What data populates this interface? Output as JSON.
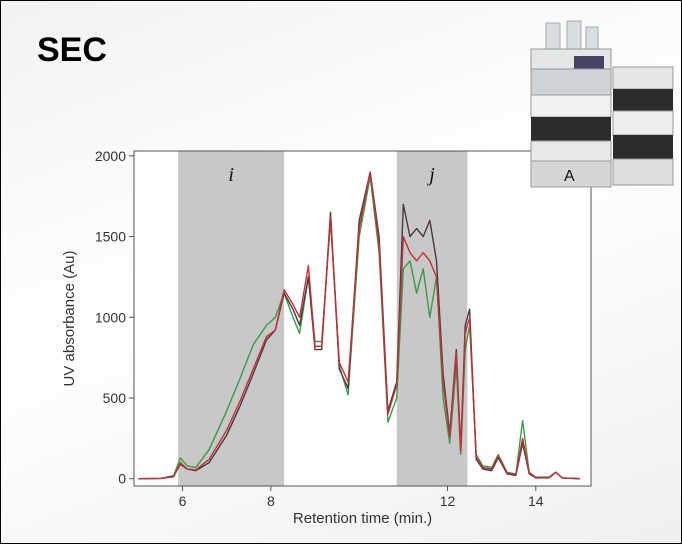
{
  "chart_data": {
    "type": "line",
    "title": "SEC",
    "image_label": "A",
    "x_label": "Retention time (min.)",
    "y_label": "UV absorbance (Au)",
    "xlim": [
      4.9,
      15.25
    ],
    "ylim": [
      -45,
      2030
    ],
    "xticks": [
      6,
      8,
      12,
      14
    ],
    "yticks": [
      0,
      500,
      1000,
      1500,
      2000
    ],
    "regions": [
      {
        "label": "i",
        "xlim": [
          5.9,
          8.3
        ],
        "color": "#c8c8c8"
      },
      {
        "label": "j",
        "xlim": [
          10.85,
          12.45
        ],
        "color": "#c8c8c8"
      }
    ],
    "x": [
      5.0,
      5.5,
      5.8,
      5.95,
      6.1,
      6.3,
      6.6,
      7.0,
      7.3,
      7.6,
      7.9,
      8.1,
      8.3,
      8.5,
      8.65,
      8.85,
      9.0,
      9.15,
      9.35,
      9.55,
      9.75,
      10.0,
      10.25,
      10.45,
      10.65,
      10.85,
      11.0,
      11.15,
      11.3,
      11.45,
      11.6,
      11.75,
      11.9,
      12.05,
      12.2,
      12.3,
      12.4,
      12.5,
      12.65,
      12.8,
      13.0,
      13.15,
      13.35,
      13.55,
      13.7,
      13.85,
      14.0,
      14.3,
      14.45,
      14.6,
      15.0
    ],
    "series": [
      {
        "color": "#3a9a4a",
        "values": [
          0,
          2,
          20,
          130,
          80,
          70,
          180,
          420,
          620,
          830,
          950,
          1000,
          1150,
          1000,
          900,
          1250,
          850,
          850,
          1600,
          700,
          520,
          1500,
          1870,
          1400,
          350,
          500,
          1300,
          1350,
          1150,
          1300,
          1000,
          1250,
          500,
          220,
          700,
          150,
          800,
          950,
          150,
          80,
          70,
          150,
          40,
          30,
          360,
          40,
          10,
          10,
          40,
          5,
          0
        ]
      },
      {
        "color": "#4a3a3a",
        "values": [
          0,
          2,
          15,
          90,
          60,
          50,
          100,
          270,
          450,
          650,
          860,
          920,
          1150,
          1050,
          950,
          1250,
          800,
          800,
          1650,
          680,
          560,
          1600,
          1900,
          1500,
          420,
          600,
          1700,
          1500,
          1550,
          1500,
          1600,
          1350,
          650,
          280,
          800,
          180,
          950,
          1050,
          120,
          60,
          50,
          130,
          30,
          20,
          220,
          30,
          5,
          5,
          40,
          5,
          0
        ]
      },
      {
        "color": "#c0303a",
        "values": [
          0,
          2,
          12,
          100,
          60,
          55,
          120,
          300,
          480,
          680,
          880,
          920,
          1170,
          1080,
          1000,
          1320,
          820,
          820,
          1620,
          720,
          600,
          1550,
          1900,
          1450,
          400,
          580,
          1500,
          1400,
          1350,
          1400,
          1350,
          1250,
          600,
          260,
          780,
          170,
          900,
          1000,
          130,
          70,
          60,
          140,
          35,
          25,
          250,
          35,
          6,
          6,
          40,
          5,
          0
        ]
      }
    ]
  }
}
